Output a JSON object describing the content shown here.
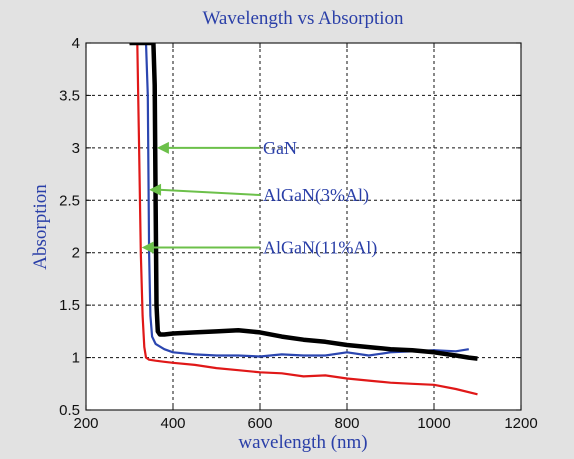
{
  "chart_data": {
    "type": "line",
    "title": "Wavelength vs Absorption",
    "xlabel": "wavelength (nm)",
    "ylabel": "Absorption",
    "xlim": [
      200,
      1200
    ],
    "ylim": [
      0.5,
      4
    ],
    "xticks": [
      "200",
      "400",
      "600",
      "800",
      "1000",
      "1200"
    ],
    "yticks": [
      "0.5",
      "1",
      "1.5",
      "2",
      "2.5",
      "3",
      "3.5",
      "4"
    ],
    "grid": true,
    "series": [
      {
        "label": "GaN",
        "color": "#000000",
        "x": [
          300,
          355,
          358,
          360,
          362,
          365,
          370,
          380,
          400,
          450,
          500,
          550,
          600,
          650,
          700,
          750,
          800,
          850,
          900,
          950,
          1000,
          1050,
          1080,
          1100
        ],
        "y": [
          4,
          4,
          3.6,
          2.5,
          1.5,
          1.25,
          1.22,
          1.22,
          1.23,
          1.24,
          1.25,
          1.26,
          1.24,
          1.2,
          1.17,
          1.15,
          1.12,
          1.1,
          1.08,
          1.07,
          1.05,
          1.02,
          1.0,
          0.99
        ]
      },
      {
        "label": "AlGaN(3%Al)",
        "color": "#2b46b0",
        "x": [
          300,
          338,
          342,
          345,
          348,
          352,
          360,
          380,
          400,
          450,
          500,
          550,
          600,
          650,
          700,
          750,
          800,
          850,
          900,
          950,
          1000,
          1050,
          1080
        ],
        "y": [
          4,
          4,
          3.5,
          2.0,
          1.4,
          1.2,
          1.13,
          1.08,
          1.05,
          1.03,
          1.02,
          1.02,
          1.01,
          1.03,
          1.02,
          1.02,
          1.05,
          1.02,
          1.05,
          1.06,
          1.07,
          1.06,
          1.08
        ]
      },
      {
        "label": "AlGaN(11%Al)",
        "color": "#e01818",
        "x": [
          318,
          322,
          326,
          330,
          334,
          338,
          345,
          360,
          380,
          400,
          450,
          500,
          550,
          600,
          650,
          700,
          750,
          800,
          850,
          900,
          950,
          1000,
          1050,
          1100
        ],
        "y": [
          4,
          3.0,
          2.0,
          1.4,
          1.1,
          1.0,
          0.98,
          0.97,
          0.96,
          0.95,
          0.93,
          0.9,
          0.88,
          0.86,
          0.85,
          0.82,
          0.83,
          0.8,
          0.78,
          0.76,
          0.75,
          0.74,
          0.7,
          0.65
        ]
      }
    ],
    "annotations": [
      {
        "text": "GaN",
        "arrow_to": [
          363,
          3.0
        ],
        "text_at": [
          600,
          3.0
        ]
      },
      {
        "text": "AlGaN(3%Al)",
        "arrow_to": [
          345,
          2.6
        ],
        "text_at": [
          600,
          2.55
        ]
      },
      {
        "text": "AlGaN(11%Al)",
        "arrow_to": [
          328,
          2.05
        ],
        "text_at": [
          600,
          2.05
        ]
      }
    ],
    "annotation_arrow_color": "#6cc04a"
  }
}
